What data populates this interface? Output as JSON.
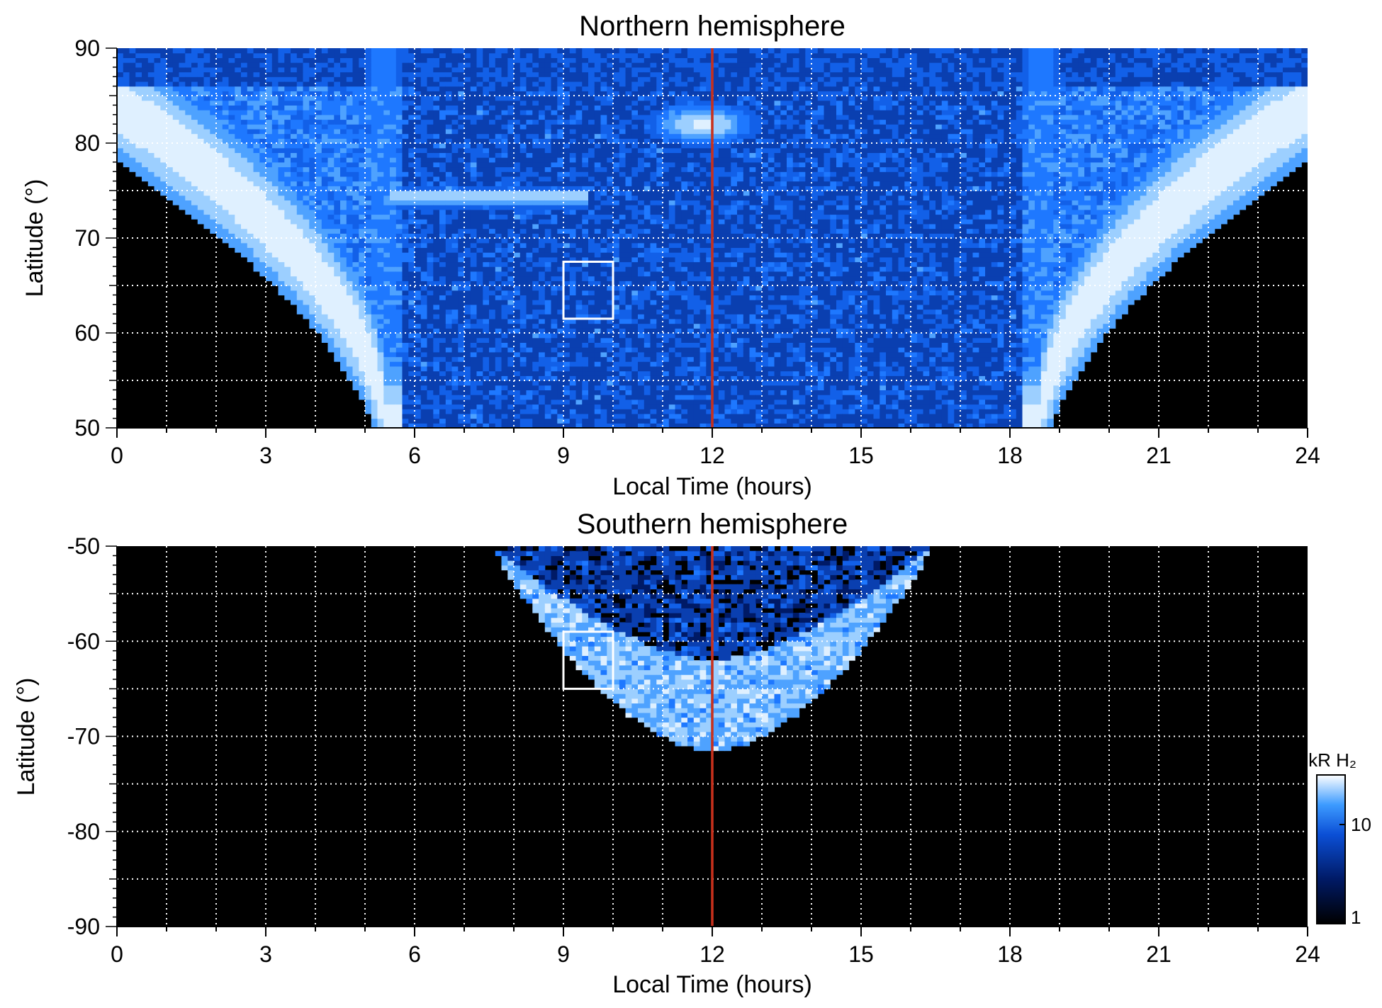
{
  "colors": {
    "background_field": "#000000",
    "emission_low": "#001a66",
    "emission_mid": "#1e78ff",
    "emission_high": "#dff0ff",
    "noon_line": "#c8301c",
    "box": "#ffffff",
    "grid": "#ffffff"
  },
  "chart_data": [
    {
      "type": "heatmap",
      "title": "Northern hemisphere",
      "xlabel": "Local Time (hours)",
      "ylabel": "Latitude (°)",
      "xlim": [
        0,
        24
      ],
      "ylim": [
        50,
        90
      ],
      "x_ticks": [
        "0",
        "3",
        "6",
        "9",
        "12",
        "15",
        "18",
        "21",
        "24"
      ],
      "y_ticks": [
        "50",
        "60",
        "70",
        "80",
        "90"
      ],
      "grid": "dotted, every 1 hour and 5 degrees",
      "reference_line_x": 12,
      "highlight_box": {
        "x": [
          9,
          10
        ],
        "lat": [
          61.5,
          67.5
        ]
      },
      "features": [
        {
          "name": "auroral oval",
          "description": "bright band from ~85° at 0/24 LT curving down to ~50° near 5 and 19 LT"
        },
        {
          "name": "dayside band",
          "lat": [
            73.5,
            75
          ],
          "lt": [
            5.5,
            9.5
          ]
        },
        {
          "name": "noon spot",
          "lat": [
            80,
            84
          ],
          "lt": [
            10.5,
            13
          ]
        }
      ]
    },
    {
      "type": "heatmap",
      "title": "Southern hemisphere",
      "xlabel": "Local Time (hours)",
      "ylabel": "Latitude (°)",
      "xlim": [
        0,
        24
      ],
      "ylim": [
        -90,
        -50
      ],
      "x_ticks": [
        "0",
        "3",
        "6",
        "9",
        "12",
        "15",
        "18",
        "21",
        "24"
      ],
      "y_ticks": [
        "-50",
        "-60",
        "-70",
        "-80",
        "-90"
      ],
      "grid": "dotted, every 1 hour and 5 degrees",
      "reference_line_x": 12,
      "highlight_box": {
        "x": [
          9,
          10
        ],
        "lat": [
          -65,
          -59
        ]
      },
      "features": [
        {
          "name": "auroral oval",
          "description": "semicircular band centred at noon spanning ~7.8–16.5 LT, reaching ~-71° at noon"
        }
      ]
    }
  ],
  "colorbar": {
    "label": "kR H₂",
    "scale": "log",
    "range": [
      1,
      30
    ],
    "tick_labels": [
      "10",
      "1"
    ]
  }
}
